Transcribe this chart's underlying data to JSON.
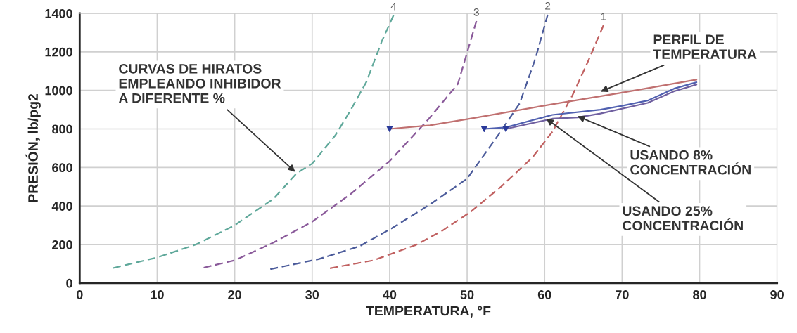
{
  "chart_data": {
    "type": "line",
    "xlabel": "TEMPERATURA, °F",
    "ylabel": "PRESIÓN, lb/pg2",
    "xlim": [
      0,
      90
    ],
    "ylim": [
      0,
      1400
    ],
    "xticks": [
      0,
      10,
      20,
      30,
      40,
      50,
      60,
      70,
      80,
      90
    ],
    "yticks": [
      0,
      200,
      400,
      600,
      800,
      1000,
      1200,
      1400
    ],
    "grid": true,
    "legend": false,
    "series": [
      {
        "name": "4",
        "color": "#5fa89a",
        "line_style": "dashed",
        "x": [
          4.3,
          10,
          15,
          20,
          25,
          28,
          30,
          33,
          35,
          37,
          39,
          40.5
        ],
        "values": [
          78,
          133,
          200,
          300,
          437,
          570,
          620,
          767,
          900,
          1044,
          1256,
          1390
        ]
      },
      {
        "name": "3",
        "color": "#8a5a9a",
        "line_style": "dashed",
        "x": [
          16,
          20,
          25,
          30,
          35,
          40,
          45,
          48.8,
          51.2
        ],
        "values": [
          80,
          118,
          210,
          318,
          463,
          633,
          850,
          1033,
          1360
        ]
      },
      {
        "name": "2",
        "color": "#4a5a9a",
        "line_style": "dashed",
        "x": [
          24.6,
          30.9,
          36.1,
          40.3,
          45.2,
          50,
          54.1,
          56.8,
          58.8,
          60.4
        ],
        "values": [
          72,
          125,
          191,
          285,
          408,
          542,
          773,
          934,
          1164,
          1393
        ]
      },
      {
        "name": "1",
        "color": "#c06060",
        "line_style": "dashed",
        "x": [
          32.3,
          37.9,
          43.4,
          46.8,
          50.4,
          54.4,
          58.4,
          61,
          63.6,
          65.6,
          67.6
        ],
        "values": [
          77,
          118,
          198,
          272,
          368,
          501,
          651,
          785,
          975,
          1150,
          1338
        ]
      },
      {
        "color": "#c07070",
        "line_style": "solid",
        "x": [
          40,
          45.2,
          50.4,
          61,
          70,
          79.6
        ],
        "values": [
          800,
          819,
          853,
          928,
          988,
          1056
        ]
      },
      {
        "color": "#5060b0",
        "line_style": "solid",
        "x": [
          52.2,
          55,
          61,
          67.2,
          70,
          73.3,
          76.7,
          79.6
        ],
        "values": [
          800,
          808,
          873,
          900,
          920,
          947,
          1009,
          1042
        ]
      },
      {
        "color": "#7060a0",
        "line_style": "solid",
        "x": [
          55,
          61,
          64.3,
          67.2,
          73.3,
          76.7,
          79.6
        ],
        "values": [
          800,
          853,
          860,
          880,
          935,
          995,
          1030
        ]
      },
      {
        "type": "scatter",
        "color": "#2a3a9a",
        "marker": "triangle",
        "x": [
          40,
          52.2,
          55
        ],
        "values": [
          800,
          800,
          800
        ]
      }
    ],
    "annotations": [
      {
        "text": "CURVAS DE HIRATOS\nEMPLEANDO INHIBIDOR\nA DIFERENTE %",
        "x": 28,
        "y": 570
      },
      {
        "text": "PERFIL DE\nTEMPERATURA",
        "x": 67,
        "y": 990
      },
      {
        "text": "USANDO 8%\nCONCENTRACIÓN",
        "x": 64,
        "y": 870
      },
      {
        "text": "USANDO 25%\nCONCENTRACIÓN",
        "x": 60,
        "y": 860
      }
    ]
  }
}
